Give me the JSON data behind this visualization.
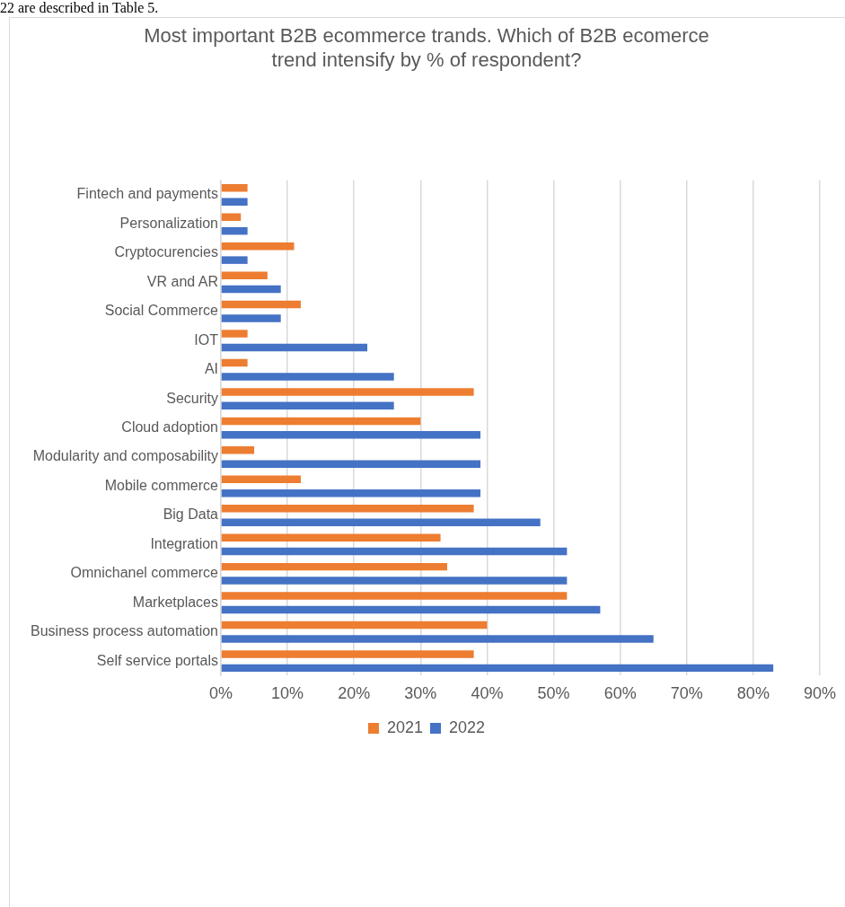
{
  "chart_data": {
    "type": "bar",
    "orientation": "horizontal",
    "title": "Most important B2B ecommerce trands. Which of B2B ecomerce trend intensify by % of respondent?",
    "annotations": [
      "22 are described in Table 5."
    ],
    "categories": [
      "Fintech and payments",
      "Personalization",
      "Cryptocurencies",
      "VR and AR",
      "Social Commerce",
      "IOT",
      "AI",
      "Security",
      "Cloud adoption",
      "Modularity and composability",
      "Mobile commerce",
      "Big Data",
      "Integration",
      "Omnichanel commerce",
      "Marketplaces",
      "Business process automation",
      "Self service portals"
    ],
    "series": [
      {
        "name": "2021",
        "color": "#ed7d31",
        "values": [
          4,
          3,
          11,
          7,
          12,
          4,
          4,
          38,
          30,
          5,
          12,
          38,
          33,
          34,
          52,
          40,
          38
        ]
      },
      {
        "name": "2022",
        "color": "#4472c4",
        "values": [
          4,
          4,
          4,
          9,
          9,
          22,
          26,
          26,
          39,
          39,
          39,
          48,
          52,
          52,
          57,
          65,
          83
        ]
      }
    ],
    "xlim": [
      0,
      90
    ],
    "xticks": [
      {
        "value": 0,
        "label": "0%"
      },
      {
        "value": 10,
        "label": "10%"
      },
      {
        "value": 20,
        "label": "20%"
      },
      {
        "value": 30,
        "label": "30%"
      },
      {
        "value": 40,
        "label": "40%"
      },
      {
        "value": 50,
        "label": "50%"
      },
      {
        "value": 60,
        "label": "60%"
      },
      {
        "value": 70,
        "label": "70%"
      },
      {
        "value": 80,
        "label": "80%"
      },
      {
        "value": 90,
        "label": "90%"
      }
    ],
    "grid": "x",
    "legend": "bottom"
  }
}
